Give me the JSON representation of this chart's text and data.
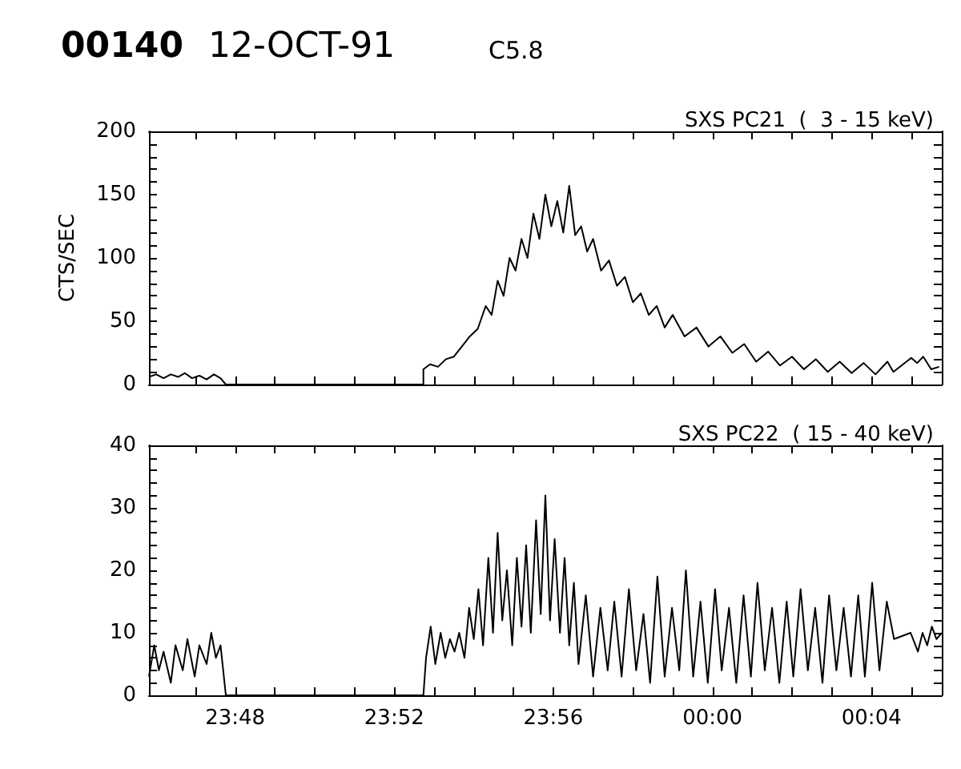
{
  "chart_data": [
    {
      "type": "line",
      "title": "SXS PC21  (  3 - 15 keV)",
      "ylabel": "CTS/SEC",
      "annotations": [
        "00140",
        "12-OCT-91",
        "C5.8"
      ],
      "marker": "none",
      "line_style": "solid",
      "tick_labels": "y",
      "xlim": [
        "--10-12T23:45:50",
        "--10-13T00:05:46"
      ],
      "xticks": [
        {
          "value": "--10-12T23:47",
          "label": null
        },
        {
          "value": "--10-12T23:48",
          "label": null
        },
        {
          "value": "--10-12T23:49",
          "label": null
        },
        {
          "value": "--10-12T23:50",
          "label": null
        },
        {
          "value": "--10-12T23:51",
          "label": null
        },
        {
          "value": "--10-12T23:52",
          "label": null
        },
        {
          "value": "--10-12T23:53",
          "label": null
        },
        {
          "value": "--10-12T23:54",
          "label": null
        },
        {
          "value": "--10-12T23:55",
          "label": null
        },
        {
          "value": "--10-12T23:56",
          "label": null
        },
        {
          "value": "--10-12T23:57",
          "label": null
        },
        {
          "value": "--10-12T23:58",
          "label": null
        },
        {
          "value": "--10-12T23:59",
          "label": null
        },
        {
          "value": "--10-13T00:00",
          "label": null
        },
        {
          "value": "--10-13T00:01",
          "label": null
        },
        {
          "value": "--10-13T00:02",
          "label": null
        },
        {
          "value": "--10-13T00:03",
          "label": null
        },
        {
          "value": "--10-13T00:04",
          "label": null
        },
        {
          "value": "--10-13T00:05",
          "label": null
        }
      ],
      "ylim": [
        0,
        200
      ],
      "yticks": [
        0,
        {
          "value": 10,
          "label": null
        },
        {
          "value": 20,
          "label": null
        },
        {
          "value": 30,
          "label": null
        },
        {
          "value": 40,
          "label": null
        },
        50,
        {
          "value": 60,
          "label": null
        },
        {
          "value": 70,
          "label": null
        },
        {
          "value": 80,
          "label": null
        },
        {
          "value": 90,
          "label": null
        },
        100,
        {
          "value": 110,
          "label": null
        },
        {
          "value": 120,
          "label": null
        },
        {
          "value": 130,
          "label": null
        },
        {
          "value": 140,
          "label": null
        },
        150,
        {
          "value": 160,
          "label": null
        },
        {
          "value": 170,
          "label": null
        },
        {
          "value": 180,
          "label": null
        },
        {
          "value": 190,
          "label": null
        },
        200
      ],
      "series": [
        {
          "color": "#000000",
          "x": [
            "--10-12T23:45:50",
            "--10-12T23:46:01",
            "--10-12T23:46:12",
            "--10-12T23:46:23",
            "--10-12T23:46:34",
            "--10-12T23:46:44",
            "--10-12T23:46:55",
            "--10-12T23:47:06",
            "--10-12T23:47:17",
            "--10-12T23:47:28",
            "--10-12T23:47:38",
            "--10-12T23:47:46",
            "--10-12T23:52:44",
            "--10-12T23:52:44",
            "--10-12T23:52:54",
            "--10-12T23:53:06",
            "--10-12T23:53:18",
            "--10-12T23:53:30",
            "--10-12T23:53:42",
            "--10-12T23:53:54",
            "--10-12T23:54:06",
            "--10-12T23:54:18",
            "--10-12T23:54:27",
            "--10-12T23:54:36",
            "--10-12T23:54:45",
            "--10-12T23:54:54",
            "--10-12T23:55:03",
            "--10-12T23:55:12",
            "--10-12T23:55:21",
            "--10-12T23:55:30",
            "--10-12T23:55:39",
            "--10-12T23:55:48",
            "--10-12T23:55:57",
            "--10-12T23:56:06",
            "--10-12T23:56:15",
            "--10-12T23:56:24",
            "--10-12T23:56:33",
            "--10-12T23:56:42",
            "--10-12T23:56:51",
            "--10-12T23:57:00",
            "--10-12T23:57:12",
            "--10-12T23:57:24",
            "--10-12T23:57:36",
            "--10-12T23:57:48",
            "--10-12T23:58:00",
            "--10-12T23:58:12",
            "--10-12T23:58:24",
            "--10-12T23:58:36",
            "--10-12T23:58:48",
            "--10-12T23:59:00",
            "--10-12T23:59:18",
            "--10-12T23:59:36",
            "--10-12T23:59:54",
            "--10-13T00:00:12",
            "--10-13T00:00:30",
            "--10-13T00:00:48",
            "--10-13T00:01:06",
            "--10-13T00:01:24",
            "--10-13T00:01:42",
            "--10-13T00:02:00",
            "--10-13T00:02:18",
            "--10-13T00:02:36",
            "--10-13T00:02:54",
            "--10-13T00:03:12",
            "--10-13T00:03:30",
            "--10-13T00:03:48",
            "--10-13T00:04:06",
            "--10-13T00:04:24",
            "--10-13T00:04:33",
            "--10-13T00:05:00",
            "--10-13T00:05:09",
            "--10-13T00:05:18",
            "--10-13T00:05:30",
            "--10-13T00:05:42"
          ],
          "values": [
            6,
            8,
            5,
            8,
            6,
            9,
            5,
            7,
            4,
            8,
            5,
            0,
            0,
            12,
            16,
            14,
            20,
            22,
            30,
            38,
            44,
            62,
            55,
            82,
            70,
            100,
            90,
            115,
            100,
            135,
            115,
            150,
            125,
            145,
            120,
            157,
            118,
            125,
            105,
            115,
            90,
            98,
            78,
            85,
            65,
            72,
            55,
            62,
            45,
            55,
            38,
            45,
            30,
            38,
            25,
            32,
            18,
            26,
            15,
            22,
            12,
            20,
            10,
            18,
            9,
            17,
            8,
            18,
            10,
            21,
            17,
            22,
            12,
            14
          ]
        }
      ]
    },
    {
      "type": "line",
      "title": "SXS PC22  ( 15 - 40 keV)",
      "marker": "none",
      "line_style": "solid",
      "xlim": [
        "--10-12T23:45:50",
        "--10-13T00:05:46"
      ],
      "xticks": [
        {
          "value": "--10-12T23:47",
          "label": null
        },
        {
          "value": "--10-12T23:48",
          "label": "23:48"
        },
        {
          "value": "--10-12T23:49",
          "label": null
        },
        {
          "value": "--10-12T23:50",
          "label": null
        },
        {
          "value": "--10-12T23:51",
          "label": null
        },
        {
          "value": "--10-12T23:52",
          "label": "23:52"
        },
        {
          "value": "--10-12T23:53",
          "label": null
        },
        {
          "value": "--10-12T23:54",
          "label": null
        },
        {
          "value": "--10-12T23:55",
          "label": null
        },
        {
          "value": "--10-12T23:56",
          "label": "23:56"
        },
        {
          "value": "--10-12T23:57",
          "label": null
        },
        {
          "value": "--10-12T23:58",
          "label": null
        },
        {
          "value": "--10-12T23:59",
          "label": null
        },
        {
          "value": "--10-13T00:00",
          "label": "00:00"
        },
        {
          "value": "--10-13T00:01",
          "label": null
        },
        {
          "value": "--10-13T00:02",
          "label": null
        },
        {
          "value": "--10-13T00:03",
          "label": null
        },
        {
          "value": "--10-13T00:04",
          "label": "00:04"
        },
        {
          "value": "--10-13T00:05",
          "label": null
        }
      ],
      "ylim": [
        0,
        40
      ],
      "yticks": [
        0,
        {
          "value": 2,
          "label": null
        },
        {
          "value": 4,
          "label": null
        },
        {
          "value": 6,
          "label": null
        },
        {
          "value": 8,
          "label": null
        },
        10,
        {
          "value": 12,
          "label": null
        },
        {
          "value": 14,
          "label": null
        },
        {
          "value": 16,
          "label": null
        },
        {
          "value": 18,
          "label": null
        },
        20,
        {
          "value": 22,
          "label": null
        },
        {
          "value": 24,
          "label": null
        },
        {
          "value": 26,
          "label": null
        },
        {
          "value": 28,
          "label": null
        },
        30,
        {
          "value": 32,
          "label": null
        },
        {
          "value": 34,
          "label": null
        },
        {
          "value": 36,
          "label": null
        },
        {
          "value": 38,
          "label": null
        },
        40
      ],
      "series": [
        {
          "color": "#000000",
          "x": [
            "--10-12T23:45:50",
            "--10-12T23:45:58",
            "--10-12T23:46:05",
            "--10-12T23:46:12",
            "--10-12T23:46:23",
            "--10-12T23:46:30",
            "--10-12T23:46:41",
            "--10-12T23:46:48",
            "--10-12T23:46:59",
            "--10-12T23:47:06",
            "--10-12T23:47:17",
            "--10-12T23:47:24",
            "--10-12T23:47:31",
            "--10-12T23:47:38",
            "--10-12T23:47:46",
            "--10-12T23:52:44",
            "--10-12T23:52:48",
            "--10-12T23:52:55",
            "--10-12T23:53:02",
            "--10-12T23:53:10",
            "--10-12T23:53:17",
            "--10-12T23:53:24",
            "--10-12T23:53:31",
            "--10-12T23:53:38",
            "--10-12T23:53:46",
            "--10-12T23:53:53",
            "--10-12T23:54:00",
            "--10-12T23:54:07",
            "--10-12T23:54:14",
            "--10-12T23:54:22",
            "--10-12T23:54:29",
            "--10-12T23:54:36",
            "--10-12T23:54:43",
            "--10-12T23:54:50",
            "--10-12T23:54:58",
            "--10-12T23:55:05",
            "--10-12T23:55:12",
            "--10-12T23:55:19",
            "--10-12T23:55:26",
            "--10-12T23:55:34",
            "--10-12T23:55:41",
            "--10-12T23:55:48",
            "--10-12T23:55:55",
            "--10-12T23:56:02",
            "--10-12T23:56:10",
            "--10-12T23:56:17",
            "--10-12T23:56:24",
            "--10-12T23:56:31",
            "--10-12T23:56:38",
            "--10-12T23:56:49",
            "--10-12T23:57:00",
            "--10-12T23:57:11",
            "--10-12T23:57:22",
            "--10-12T23:57:32",
            "--10-12T23:57:43",
            "--10-12T23:57:54",
            "--10-12T23:58:05",
            "--10-12T23:58:16",
            "--10-12T23:58:26",
            "--10-12T23:58:37",
            "--10-12T23:58:48",
            "--10-12T23:58:59",
            "--10-12T23:59:10",
            "--10-12T23:59:20",
            "--10-12T23:59:31",
            "--10-12T23:59:42",
            "--10-12T23:59:53",
            "--10-13T00:00:04",
            "--10-13T00:00:14",
            "--10-13T00:00:25",
            "--10-13T00:00:36",
            "--10-13T00:00:47",
            "--10-13T00:00:58",
            "--10-13T00:01:08",
            "--10-13T00:01:19",
            "--10-13T00:01:30",
            "--10-13T00:01:41",
            "--10-13T00:01:52",
            "--10-13T00:02:02",
            "--10-13T00:02:13",
            "--10-13T00:02:24",
            "--10-13T00:02:35",
            "--10-13T00:02:46",
            "--10-13T00:02:56",
            "--10-13T00:03:07",
            "--10-13T00:03:18",
            "--10-13T00:03:29",
            "--10-13T00:03:40",
            "--10-13T00:03:50",
            "--10-13T00:04:01",
            "--10-13T00:04:12",
            "--10-13T00:04:23",
            "--10-13T00:04:34",
            "--10-13T00:04:59",
            "--10-13T00:05:10",
            "--10-13T00:05:17",
            "--10-13T00:05:24",
            "--10-13T00:05:31",
            "--10-13T00:05:38",
            "--10-13T00:05:46"
          ],
          "values": [
            3,
            8,
            4,
            7,
            2,
            8,
            4,
            9,
            3,
            8,
            5,
            10,
            6,
            8,
            0,
            0,
            6,
            11,
            5,
            10,
            6,
            9,
            7,
            10,
            6,
            14,
            9,
            17,
            8,
            22,
            10,
            26,
            12,
            20,
            8,
            22,
            11,
            24,
            10,
            28,
            13,
            32,
            12,
            25,
            10,
            22,
            8,
            18,
            5,
            16,
            3,
            14,
            4,
            15,
            3,
            17,
            4,
            13,
            2,
            19,
            3,
            14,
            4,
            20,
            3,
            15,
            2,
            17,
            4,
            14,
            2,
            16,
            3,
            18,
            4,
            14,
            2,
            15,
            3,
            17,
            4,
            14,
            2,
            16,
            4,
            14,
            3,
            16,
            3,
            18,
            4,
            15,
            9,
            10,
            7,
            10,
            8,
            11,
            9,
            10
          ]
        }
      ]
    }
  ]
}
